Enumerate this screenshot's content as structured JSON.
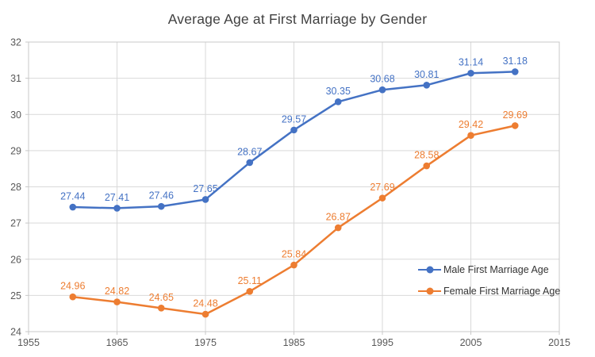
{
  "chart": {
    "title": "Average Age at First Marriage by Gender"
  },
  "legend": {
    "items": [
      {
        "label": "Male First Marriage Age",
        "color": "#4472C4"
      },
      {
        "label": "Female First Marriage Age",
        "color": "#ED7D31"
      }
    ]
  },
  "chart_data": {
    "type": "line",
    "title": "Average Age at First Marriage by Gender",
    "x": [
      1960,
      1965,
      1970,
      1975,
      1980,
      1985,
      1990,
      1995,
      2000,
      2005,
      2010
    ],
    "series": [
      {
        "name": "Male First Marriage Age",
        "color": "#4472C4",
        "values": [
          27.44,
          27.41,
          27.46,
          27.65,
          28.67,
          29.57,
          30.35,
          30.68,
          30.81,
          31.14,
          31.18
        ]
      },
      {
        "name": "Female First Marriage Age",
        "color": "#ED7D31",
        "values": [
          24.96,
          24.82,
          24.65,
          24.48,
          25.11,
          25.84,
          26.87,
          27.69,
          28.58,
          29.42,
          29.69
        ]
      }
    ],
    "xlim": [
      1955,
      2015
    ],
    "ylim": [
      24,
      32
    ],
    "x_ticks": [
      1955,
      1965,
      1975,
      1985,
      1995,
      2005,
      2015
    ],
    "y_ticks": [
      24,
      25,
      26,
      27,
      28,
      29,
      30,
      31,
      32
    ],
    "grid": true,
    "data_labels": true,
    "legend_position": "inside-right",
    "marker": "circle",
    "colors": {
      "grid": "#D9D9D9",
      "plot_border": "#C8C8C8",
      "axis_text": "#595959",
      "title_text": "#404040",
      "legend_text": "#333333"
    }
  }
}
